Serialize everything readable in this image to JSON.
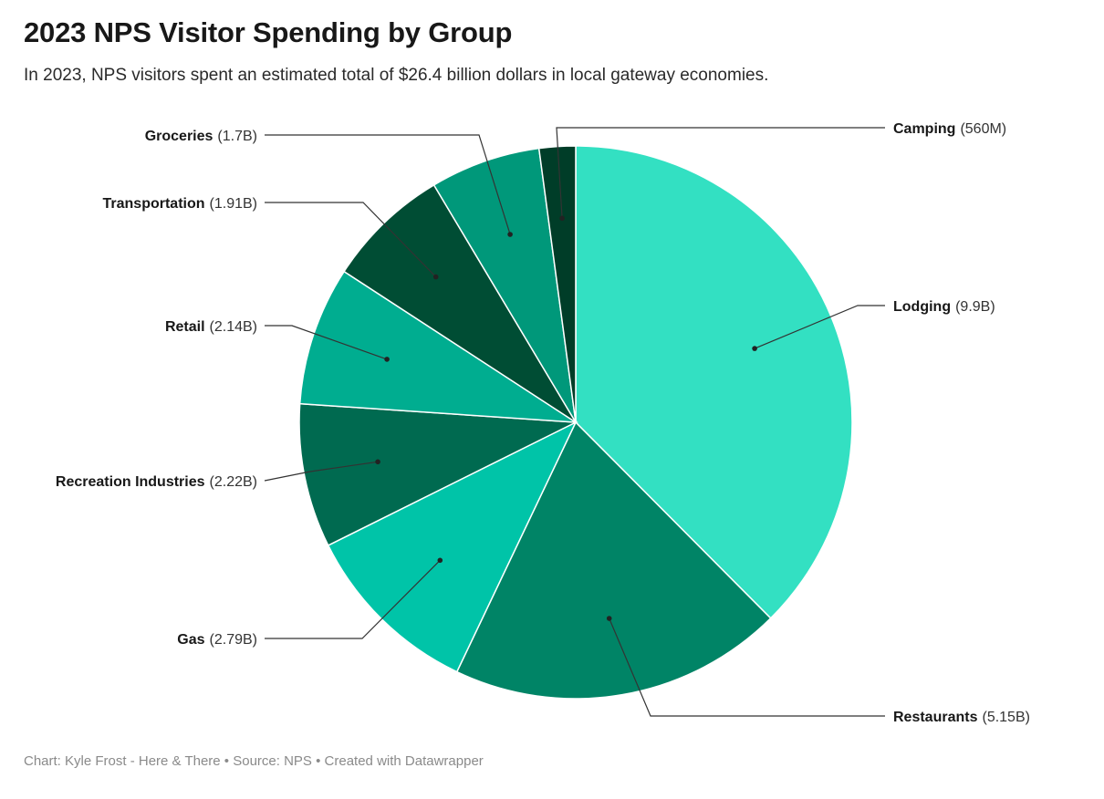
{
  "header": {
    "title": "2023 NPS Visitor Spending by Group",
    "subtitle": "In 2023, NPS visitors spent an estimated total of $26.4 billion dollars in local gateway economies."
  },
  "footer": {
    "credit": "Chart: Kyle Frost - Here & There",
    "separator": " • ",
    "source": "Source: NPS",
    "tool": "Created with Datawrapper"
  },
  "chart_data": {
    "type": "pie",
    "unit": "billion USD",
    "categories": [
      "Lodging",
      "Restaurants",
      "Gas",
      "Recreation Industries",
      "Retail",
      "Transportation",
      "Groceries",
      "Camping"
    ],
    "values": [
      9.9,
      5.15,
      2.79,
      2.22,
      2.14,
      1.91,
      1.7,
      0.56
    ],
    "value_labels": [
      "(9.9B)",
      "(5.15B)",
      "(2.79B)",
      "(2.22B)",
      "(2.14B)",
      "(1.91B)",
      "(1.7B)",
      "(560M)"
    ],
    "colors": [
      "#33e0c2",
      "#008466",
      "#00c4a8",
      "#006a50",
      "#00ad90",
      "#004d34",
      "#00987a",
      "#003d28"
    ],
    "start_angle_deg": 0,
    "direction": "clockwise",
    "label_placement": "outside-with-leader-lines"
  }
}
